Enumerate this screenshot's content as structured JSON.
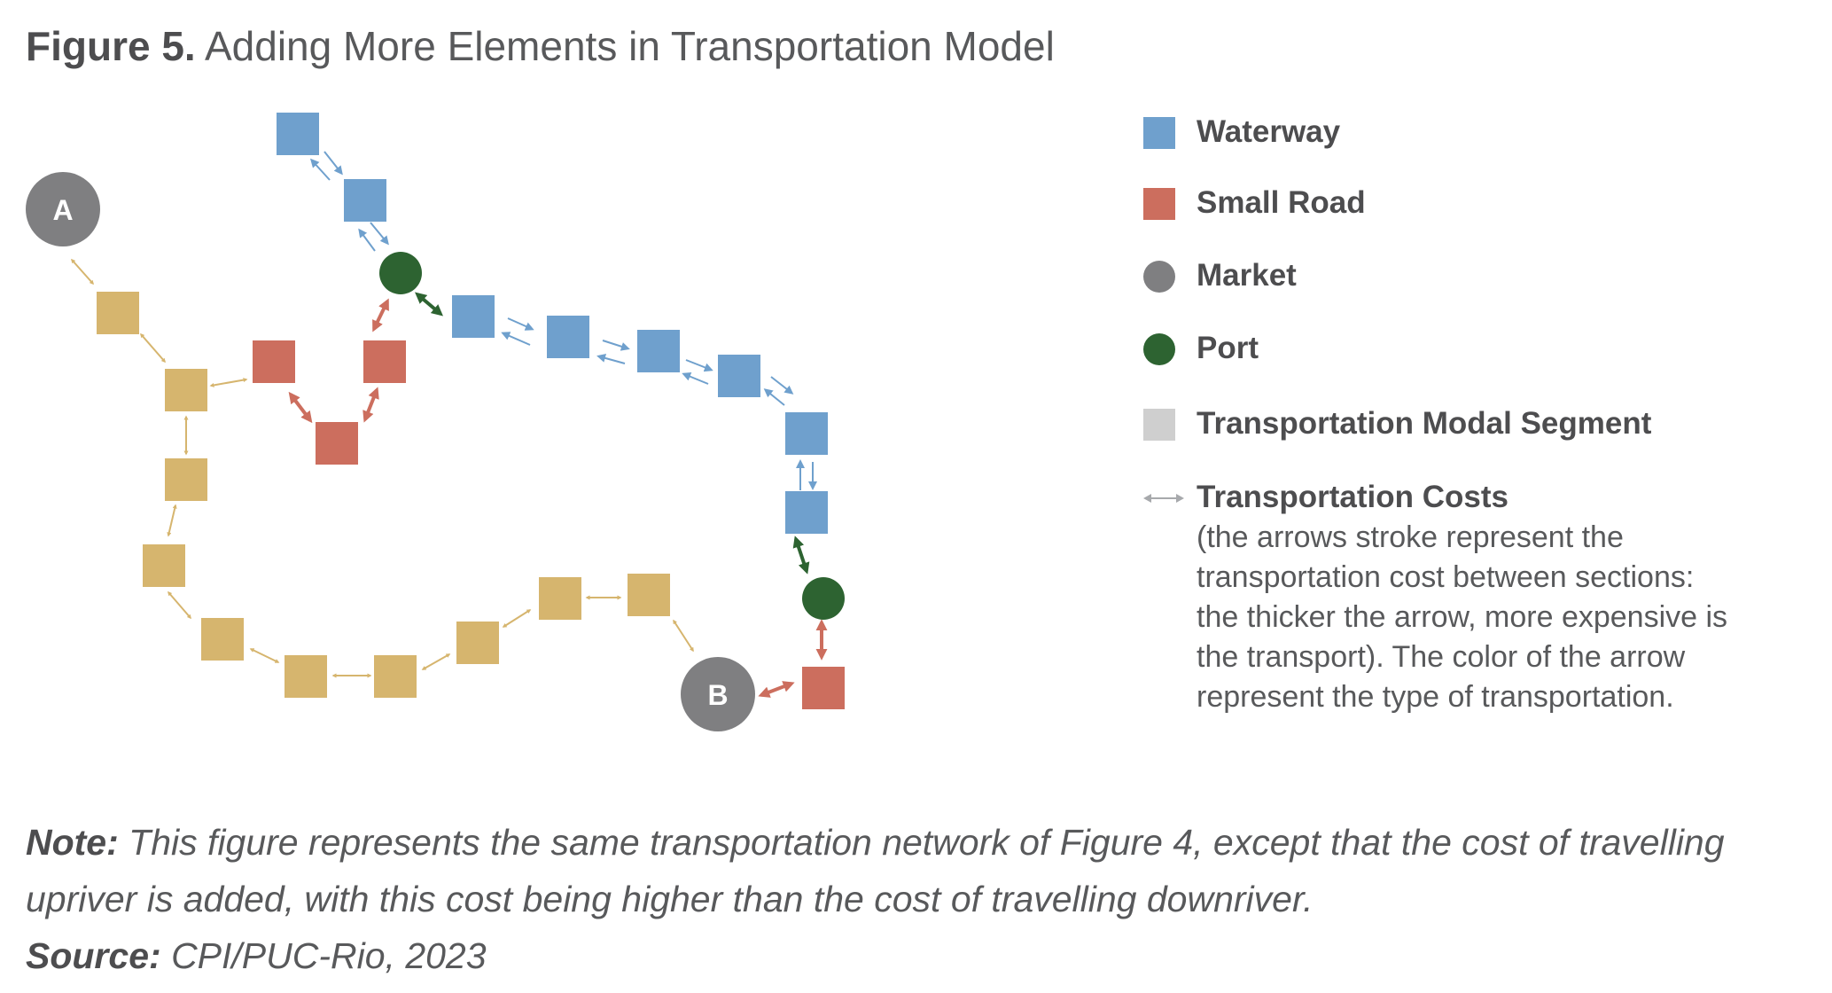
{
  "title": {
    "label": "Figure 5.",
    "text": "Adding More Elements in Transportation Model"
  },
  "colors": {
    "waterway": "#6fa0cd",
    "small_road": "#cc6e5e",
    "market": "#7f7f81",
    "port": "#2d6331",
    "segment": "#d6b56e",
    "modal_segment": "#cfcfcf",
    "cost_arrow": "#a7a9ac"
  },
  "nodes": {
    "market_a": "A",
    "market_b": "B"
  },
  "legend": {
    "waterway": "Waterway",
    "small_road": "Small Road",
    "market": "Market",
    "port": "Port",
    "modal_segment": "Transportation Modal Segment",
    "costs": "Transportation Costs",
    "costs_desc": "(the arrows stroke represent the transportation cost between sections: the thicker the arrow, more expensive is the transport). The color of the arrow represent the type of transportation."
  },
  "note": {
    "label": "Note:",
    "text": "This figure represents the same transportation network of Figure 4, except that the cost of travelling upriver is added, with this cost being higher than the cost of travelling downriver."
  },
  "source": {
    "label": "Source:",
    "text": "CPI/PUC-Rio, 2023"
  }
}
